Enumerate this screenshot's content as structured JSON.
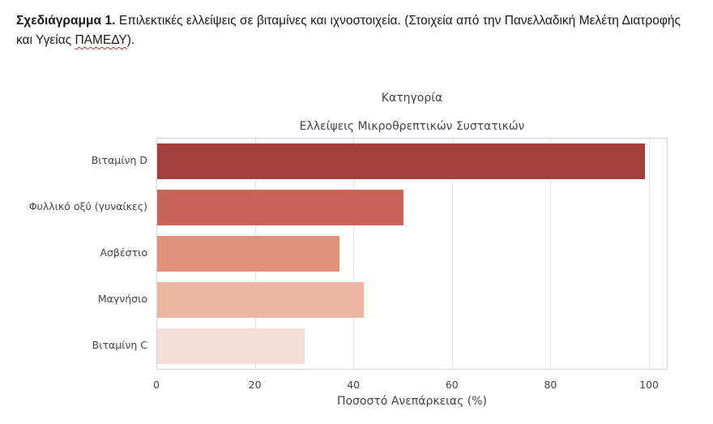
{
  "caption": {
    "bold": "Σχεδιάγραμμα 1.",
    "text": " Επιλεκτικές ελλείψεις σε βιταμίνες και ιχνοστοιχεία. (Στοιχεία από την Πανελλαδική Μελέτη Διατροφής και Υγείας ",
    "abbr": "ΠΑΜΕΔΥ",
    "tail": ")."
  },
  "chart_data": {
    "type": "bar",
    "orientation": "horizontal",
    "legend_title": "Κατηγορία",
    "title": "Ελλείψεις Μικροθρεπτικών Συστατικών",
    "xlabel": "Ποσοστό Ανεπάρκειας (%)",
    "ylabel": "",
    "categories": [
      "Βιταμίνη D",
      "Φυλλικό οξύ (γυναίκες)",
      "Ασβέστιο",
      "Μαγνήσιο",
      "Βιταμίνη C"
    ],
    "values": [
      99,
      50,
      37,
      42,
      30
    ],
    "colors": [
      "#a33f3d",
      "#c86458",
      "#e0927a",
      "#ebb7a2",
      "#f4e0d8"
    ],
    "xlim": [
      0,
      104
    ],
    "xticks": [
      "0",
      "20",
      "40",
      "60",
      "80",
      "100"
    ],
    "grid": true
  }
}
